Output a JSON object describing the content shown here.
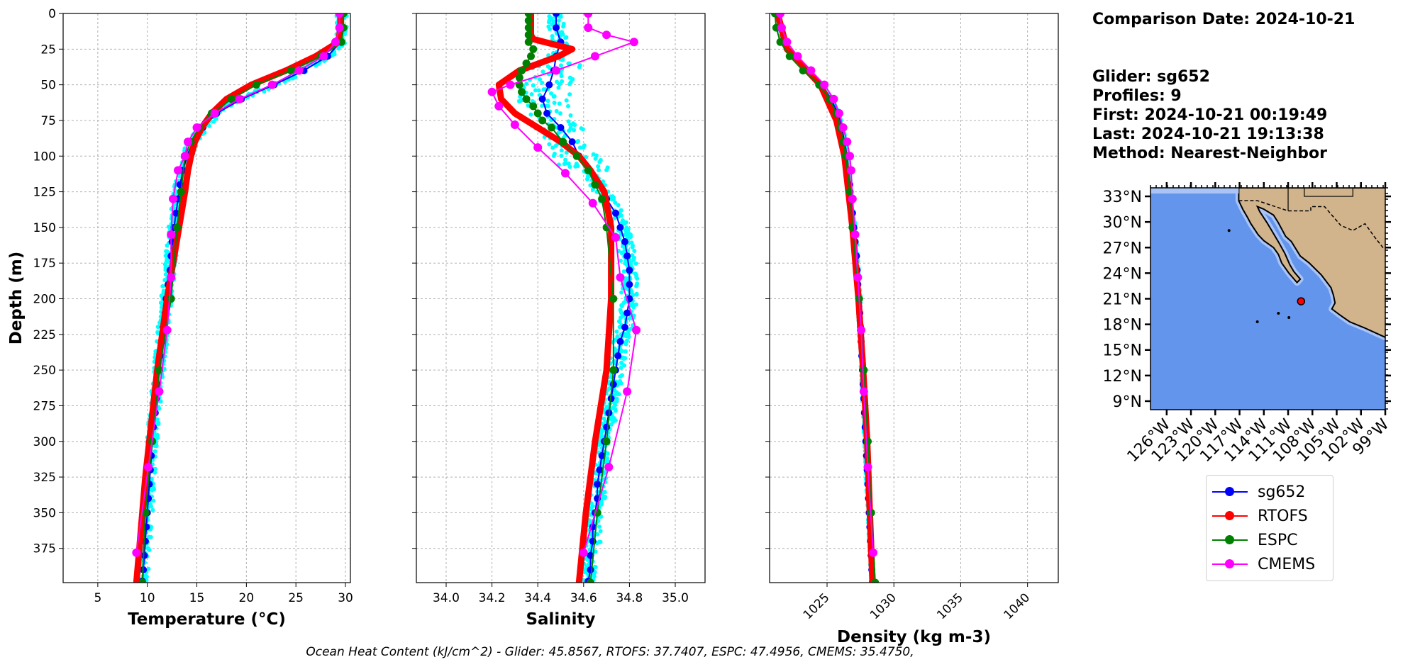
{
  "info": {
    "line1": "Comparison Date: 2024-10-21",
    "line2": "Glider: sg652",
    "line3": "Profiles: 9",
    "line4": "First: 2024-10-21 00:19:49",
    "line5": "Last: 2024-10-21 19:13:38",
    "line6": "Method: Nearest-Neighbor"
  },
  "footer": "Ocean Heat Content (kJ/cm^2) - Glider: 45.8567,  RTOFS: 37.7407,  ESPC: 47.4956,  CMEMS: 35.4750,",
  "legend": [
    {
      "name": "sg652",
      "color": "#0000ff"
    },
    {
      "name": "RTOFS",
      "color": "#ff0000"
    },
    {
      "name": "ESPC",
      "color": "#008000"
    },
    {
      "name": "CMEMS",
      "color": "#ff00ff"
    }
  ],
  "colors": {
    "raw_glider": "#00ffff",
    "grid": "#b0b0b0",
    "ocean": "#6495ed",
    "land": "#d2b48c",
    "shelf": "#a9c4f5",
    "marker": "#ff0000"
  },
  "chart_data": [
    {
      "type": "line",
      "title": "",
      "xlabel": "Temperature (°C)",
      "ylabel": "Depth (m)",
      "xlim": [
        1.5,
        30.5
      ],
      "ylim": [
        399,
        0
      ],
      "xticks": [
        5,
        10,
        15,
        20,
        25,
        30
      ],
      "yticks": [
        0,
        25,
        50,
        75,
        100,
        125,
        150,
        175,
        200,
        225,
        250,
        275,
        300,
        325,
        350,
        375
      ],
      "grid": true,
      "series": [
        {
          "name": "sg652",
          "depths": [
            0,
            10,
            20,
            30,
            40,
            50,
            60,
            70,
            80,
            90,
            100,
            110,
            120,
            130,
            140,
            150,
            160,
            170,
            180,
            190,
            200,
            210,
            220,
            230,
            240,
            250,
            260,
            270,
            280,
            290,
            300,
            310,
            320,
            330,
            340,
            350,
            360,
            370,
            380,
            390,
            398
          ],
          "values": [
            29.6,
            29.6,
            29.5,
            28.2,
            25.8,
            22.8,
            19.5,
            17.0,
            15.6,
            14.6,
            14.0,
            13.6,
            13.3,
            13.1,
            12.9,
            12.7,
            12.5,
            12.4,
            12.3,
            12.1,
            11.9,
            11.8,
            11.6,
            11.5,
            11.3,
            11.2,
            11.0,
            10.9,
            10.8,
            10.6,
            10.5,
            10.4,
            10.3,
            10.2,
            10.1,
            10.0,
            9.9,
            9.8,
            9.7,
            9.6,
            9.5
          ]
        },
        {
          "name": "RTOFS",
          "depths": [
            0,
            10,
            20,
            30,
            40,
            50,
            60,
            70,
            80,
            90,
            100,
            110,
            125,
            150,
            175,
            200,
            225,
            250,
            275,
            300,
            325,
            350,
            375,
            399
          ],
          "values": [
            29.5,
            29.5,
            29.3,
            27.0,
            24.0,
            20.5,
            18.0,
            16.5,
            15.5,
            14.8,
            14.4,
            14.1,
            13.8,
            13.2,
            12.6,
            12.0,
            11.5,
            11.0,
            10.6,
            10.2,
            9.8,
            9.5,
            9.2,
            8.9
          ]
        },
        {
          "name": "ESPC",
          "depths": [
            0,
            10,
            20,
            30,
            40,
            50,
            60,
            70,
            80,
            90,
            100,
            125,
            150,
            200,
            250,
            300,
            350,
            399
          ],
          "values": [
            29.8,
            29.8,
            29.6,
            27.5,
            24.5,
            21.0,
            18.5,
            16.5,
            15.2,
            14.4,
            13.8,
            13.4,
            13.0,
            12.4,
            11.2,
            10.5,
            9.8,
            9.5
          ]
        },
        {
          "name": "CMEMS",
          "depths": [
            0,
            10,
            20,
            30,
            40,
            50,
            60,
            70,
            80,
            90,
            100,
            110,
            130,
            155,
            185,
            222,
            265,
            318,
            378
          ],
          "values": [
            29.4,
            29.4,
            29.0,
            27.8,
            25.3,
            22.6,
            19.3,
            16.8,
            15.0,
            14.1,
            13.8,
            13.1,
            12.6,
            12.4,
            12.4,
            12.0,
            11.2,
            10.1,
            8.9
          ]
        }
      ]
    },
    {
      "type": "line",
      "title": "",
      "xlabel": "Salinity",
      "ylabel": "",
      "xlim": [
        33.87,
        35.13
      ],
      "ylim": [
        399,
        0
      ],
      "xticks": [
        "34.0",
        "34.2",
        "34.4",
        "34.6",
        "34.8",
        "35.0"
      ],
      "grid": true,
      "series": [
        {
          "name": "sg652",
          "depths": [
            0,
            10,
            20,
            30,
            40,
            50,
            60,
            70,
            80,
            90,
            100,
            110,
            120,
            130,
            140,
            150,
            160,
            170,
            180,
            190,
            200,
            210,
            220,
            230,
            240,
            250,
            260,
            270,
            280,
            290,
            300,
            310,
            320,
            330,
            340,
            350,
            360,
            370,
            380,
            390,
            398
          ],
          "values": [
            34.48,
            34.48,
            34.5,
            34.48,
            34.47,
            34.45,
            34.42,
            34.44,
            34.5,
            34.55,
            34.58,
            34.62,
            34.66,
            34.7,
            34.74,
            34.76,
            34.78,
            34.79,
            34.8,
            34.8,
            34.8,
            34.79,
            34.78,
            34.76,
            34.75,
            34.74,
            34.73,
            34.72,
            34.71,
            34.7,
            34.69,
            34.68,
            34.67,
            34.66,
            34.66,
            34.65,
            34.64,
            34.64,
            34.63,
            34.63,
            34.62
          ]
        },
        {
          "name": "RTOFS",
          "depths": [
            0,
            10,
            15,
            18,
            20,
            25,
            30,
            40,
            50,
            60,
            70,
            80,
            90,
            100,
            110,
            125,
            150,
            175,
            200,
            250,
            300,
            350,
            399
          ],
          "values": [
            34.37,
            34.37,
            34.37,
            34.38,
            34.43,
            34.55,
            34.49,
            34.32,
            34.23,
            34.24,
            34.3,
            34.4,
            34.5,
            34.58,
            34.63,
            34.69,
            34.72,
            34.72,
            34.72,
            34.7,
            34.65,
            34.61,
            34.58
          ]
        },
        {
          "name": "ESPC",
          "depths": [
            0,
            5,
            10,
            15,
            20,
            25,
            30,
            35,
            40,
            45,
            50,
            55,
            60,
            65,
            70,
            75,
            80,
            90,
            100,
            110,
            120,
            130,
            150,
            200,
            250,
            300,
            350,
            399
          ],
          "values": [
            34.36,
            34.36,
            34.36,
            34.36,
            34.36,
            34.38,
            34.37,
            34.35,
            34.33,
            34.32,
            34.32,
            34.33,
            34.35,
            34.38,
            34.4,
            34.42,
            34.46,
            34.51,
            34.57,
            34.62,
            34.65,
            34.68,
            34.7,
            34.73,
            34.73,
            34.7,
            34.66,
            34.63
          ]
        },
        {
          "name": "CMEMS",
          "depths": [
            0,
            10,
            15,
            20,
            30,
            40,
            50,
            55,
            65,
            78,
            94,
            112,
            133,
            157,
            185,
            222,
            265,
            318,
            378
          ],
          "values": [
            34.62,
            34.62,
            34.7,
            34.82,
            34.65,
            34.48,
            34.28,
            34.2,
            34.23,
            34.3,
            34.4,
            34.52,
            34.64,
            34.74,
            34.76,
            34.83,
            34.79,
            34.71,
            34.6
          ]
        }
      ]
    },
    {
      "type": "line",
      "title": "",
      "xlabel": "Density (kg m-3)",
      "ylabel": "",
      "xlim": [
        1020.7,
        1042.3
      ],
      "ylim": [
        399,
        0
      ],
      "xticks": [
        1025,
        1030,
        1035,
        1040
      ],
      "grid": true,
      "series": [
        {
          "name": "sg652",
          "depths": [
            0,
            10,
            20,
            30,
            40,
            50,
            60,
            70,
            80,
            90,
            100,
            110,
            120,
            130,
            140,
            150,
            160,
            170,
            180,
            190,
            200,
            210,
            220,
            230,
            240,
            250,
            260,
            270,
            280,
            290,
            300,
            310,
            320,
            330,
            340,
            350,
            360,
            370,
            380,
            390,
            398
          ],
          "values": [
            1021.4,
            1021.5,
            1021.8,
            1022.5,
            1023.5,
            1024.6,
            1025.3,
            1025.8,
            1026.1,
            1026.3,
            1026.5,
            1026.6,
            1026.7,
            1026.8,
            1026.9,
            1027.0,
            1027.1,
            1027.2,
            1027.25,
            1027.3,
            1027.4,
            1027.45,
            1027.5,
            1027.55,
            1027.6,
            1027.65,
            1027.7,
            1027.75,
            1027.8,
            1027.85,
            1027.9,
            1027.95,
            1028.0,
            1028.05,
            1028.1,
            1028.15,
            1028.2,
            1028.25,
            1028.3,
            1028.35,
            1028.4
          ]
        },
        {
          "name": "RTOFS",
          "depths": [
            0,
            25,
            50,
            75,
            100,
            150,
            200,
            250,
            300,
            350,
            399
          ],
          "values": [
            1021.3,
            1022.0,
            1024.5,
            1025.7,
            1026.3,
            1026.9,
            1027.35,
            1027.7,
            1028.0,
            1028.2,
            1028.4
          ]
        },
        {
          "name": "ESPC",
          "depths": [
            0,
            10,
            20,
            30,
            40,
            50,
            60,
            70,
            80,
            90,
            100,
            125,
            150,
            200,
            250,
            300,
            350,
            399
          ],
          "values": [
            1021.1,
            1021.2,
            1021.5,
            1022.2,
            1023.2,
            1024.4,
            1025.2,
            1025.7,
            1026.0,
            1026.2,
            1026.4,
            1026.7,
            1026.9,
            1027.4,
            1027.75,
            1028.05,
            1028.3,
            1028.6
          ]
        },
        {
          "name": "CMEMS",
          "depths": [
            0,
            10,
            20,
            30,
            40,
            50,
            60,
            70,
            80,
            90,
            100,
            110,
            130,
            155,
            185,
            222,
            265,
            318,
            378
          ],
          "values": [
            1021.5,
            1021.6,
            1022.0,
            1022.8,
            1023.8,
            1024.8,
            1025.5,
            1025.9,
            1026.2,
            1026.5,
            1026.7,
            1026.8,
            1026.9,
            1027.1,
            1027.3,
            1027.55,
            1027.75,
            1028.05,
            1028.45
          ]
        }
      ]
    },
    {
      "type": "map",
      "lat_ticks": [
        "33°N",
        "30°N",
        "27°N",
        "24°N",
        "21°N",
        "18°N",
        "15°N",
        "12°N",
        "9°N"
      ],
      "lon_ticks": [
        "126°W",
        "123°W",
        "120°W",
        "117°W",
        "114°W",
        "111°W",
        "108°W",
        "105°W",
        "102°W",
        "99°W"
      ],
      "lat_range": [
        8,
        34
      ],
      "lon_range": [
        -128,
        -99
      ],
      "glider_position": {
        "lat": 20.7,
        "lon": -109.4
      }
    }
  ]
}
